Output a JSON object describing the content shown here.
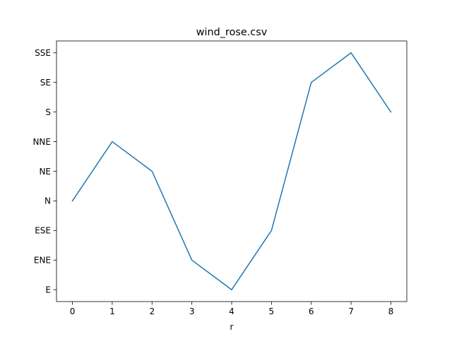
{
  "chart_data": {
    "type": "line",
    "title": "wind_rose.csv",
    "xlabel": "r",
    "ylabel": "",
    "x": [
      0,
      1,
      2,
      3,
      4,
      5,
      6,
      7,
      8
    ],
    "x_ticks": [
      "0",
      "1",
      "2",
      "3",
      "4",
      "5",
      "6",
      "7",
      "8"
    ],
    "y_categories": [
      "E",
      "ENE",
      "ESE",
      "N",
      "NE",
      "NNE",
      "S",
      "SE",
      "SSE"
    ],
    "series": [
      {
        "values": [
          "N",
          "NNE",
          "NE",
          "ENE",
          "E",
          "ESE",
          "SE",
          "SSE",
          "S"
        ],
        "color": "#1f77b4"
      }
    ],
    "xlim": [
      -0.4,
      8.4
    ],
    "grid": false
  }
}
